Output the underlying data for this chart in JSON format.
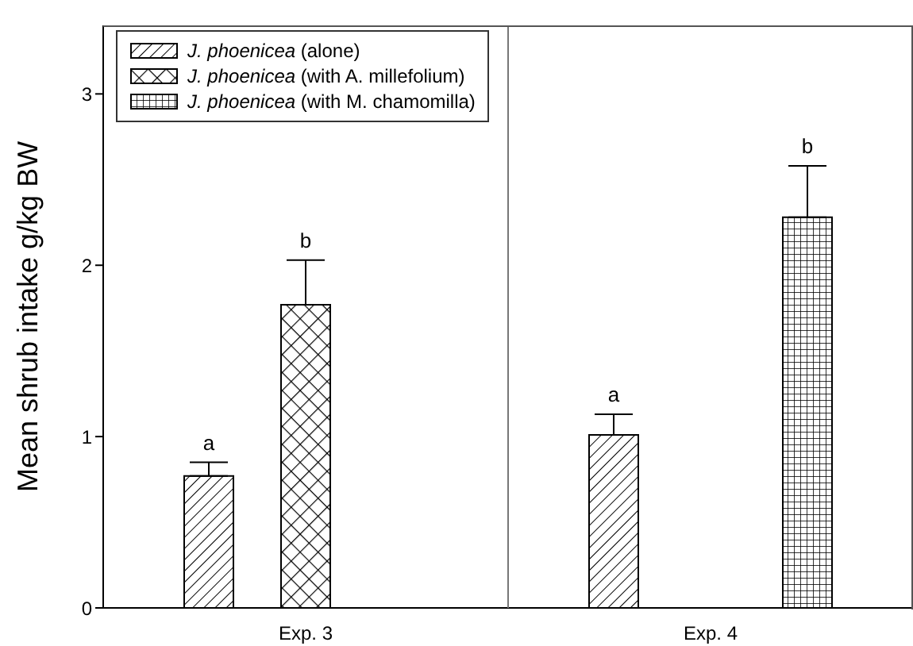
{
  "chart_data": {
    "type": "bar",
    "ylabel": "Mean shrub intake g/kg BW",
    "categories": [
      "Exp. 3",
      "Exp. 4"
    ],
    "ylim": [
      0,
      3.4
    ],
    "yticks": [
      0,
      1,
      2,
      3
    ],
    "legend": "top left",
    "series": [
      {
        "name": "J. phoenicea (alone)",
        "color": "#000000",
        "values": [
          0.77,
          1.01
        ],
        "errors": [
          [
            0.77,
            0.85
          ],
          [
            1.01,
            1.13
          ]
        ],
        "value_labels": [
          "a",
          "a"
        ]
      },
      {
        "name": "J. phoenicea (with A. millefolium)",
        "color": "#000000",
        "values": [
          1.77,
          null
        ],
        "errors": [
          [
            1.77,
            2.03
          ],
          null
        ],
        "value_labels": [
          "b",
          null
        ]
      },
      {
        "name": "J. phoenicea (with M. chamomilla)",
        "color": "#000000",
        "values": [
          null,
          2.28
        ],
        "errors": [
          null,
          [
            2.28,
            2.58
          ]
        ],
        "value_labels": [
          null,
          "b"
        ]
      }
    ]
  }
}
